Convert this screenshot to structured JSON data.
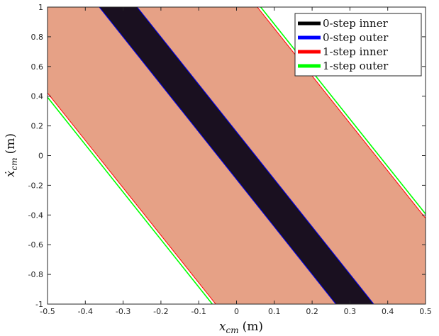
{
  "chart_data": {
    "type": "area",
    "xlabel_main": "x",
    "xlabel_sub": "cm",
    "xlabel_unit": "(m)",
    "ylabel_main": "ẋ",
    "ylabel_sub": "cm",
    "ylabel_unit": "(m)",
    "xlim": [
      -0.5,
      0.5
    ],
    "ylim": [
      -1,
      1
    ],
    "xticks": [
      -0.5,
      -0.4,
      -0.3,
      -0.2,
      -0.1,
      0,
      0.1,
      0.2,
      0.3,
      0.4,
      0.5
    ],
    "xtick_labels": [
      "-0.5",
      "-0.4",
      "-0.3",
      "-0.2",
      "-0.1",
      "0",
      "0.1",
      "0.2",
      "0.3",
      "0.4",
      "0.5"
    ],
    "yticks": [
      -1,
      -0.8,
      -0.6,
      -0.4,
      -0.2,
      0,
      0.2,
      0.4,
      0.6,
      0.8,
      1
    ],
    "ytick_labels": [
      "-1",
      "-0.8",
      "-0.6",
      "-0.4",
      "-0.2",
      "0",
      "0.2",
      "0.4",
      "0.6",
      "0.8",
      "1"
    ],
    "grid": false,
    "legend_position": "top-right",
    "series": [
      {
        "name": "0-step inner",
        "color": "#000000",
        "fill": "#1a1020",
        "region_x_at_top": [
          -0.363,
          -0.263
        ],
        "region_x_at_bottom": [
          0.263,
          0.363
        ]
      },
      {
        "name": "0-step outer",
        "color": "#0000ff",
        "fill": "none",
        "region_x_at_top": [
          -0.363,
          -0.263
        ],
        "region_x_at_bottom": [
          0.263,
          0.363
        ]
      },
      {
        "name": "1-step inner",
        "color": "#ff0000",
        "fill": "#e6a186",
        "region_x_at_top": [
          -0.681,
          0.055
        ],
        "region_x_at_bottom": [
          -0.055,
          0.681
        ]
      },
      {
        "name": "1-step outer",
        "color": "#00ff00",
        "fill": "none",
        "region_x_at_top": [
          -0.69,
          0.064
        ],
        "region_x_at_bottom": [
          -0.064,
          0.69
        ]
      }
    ]
  }
}
